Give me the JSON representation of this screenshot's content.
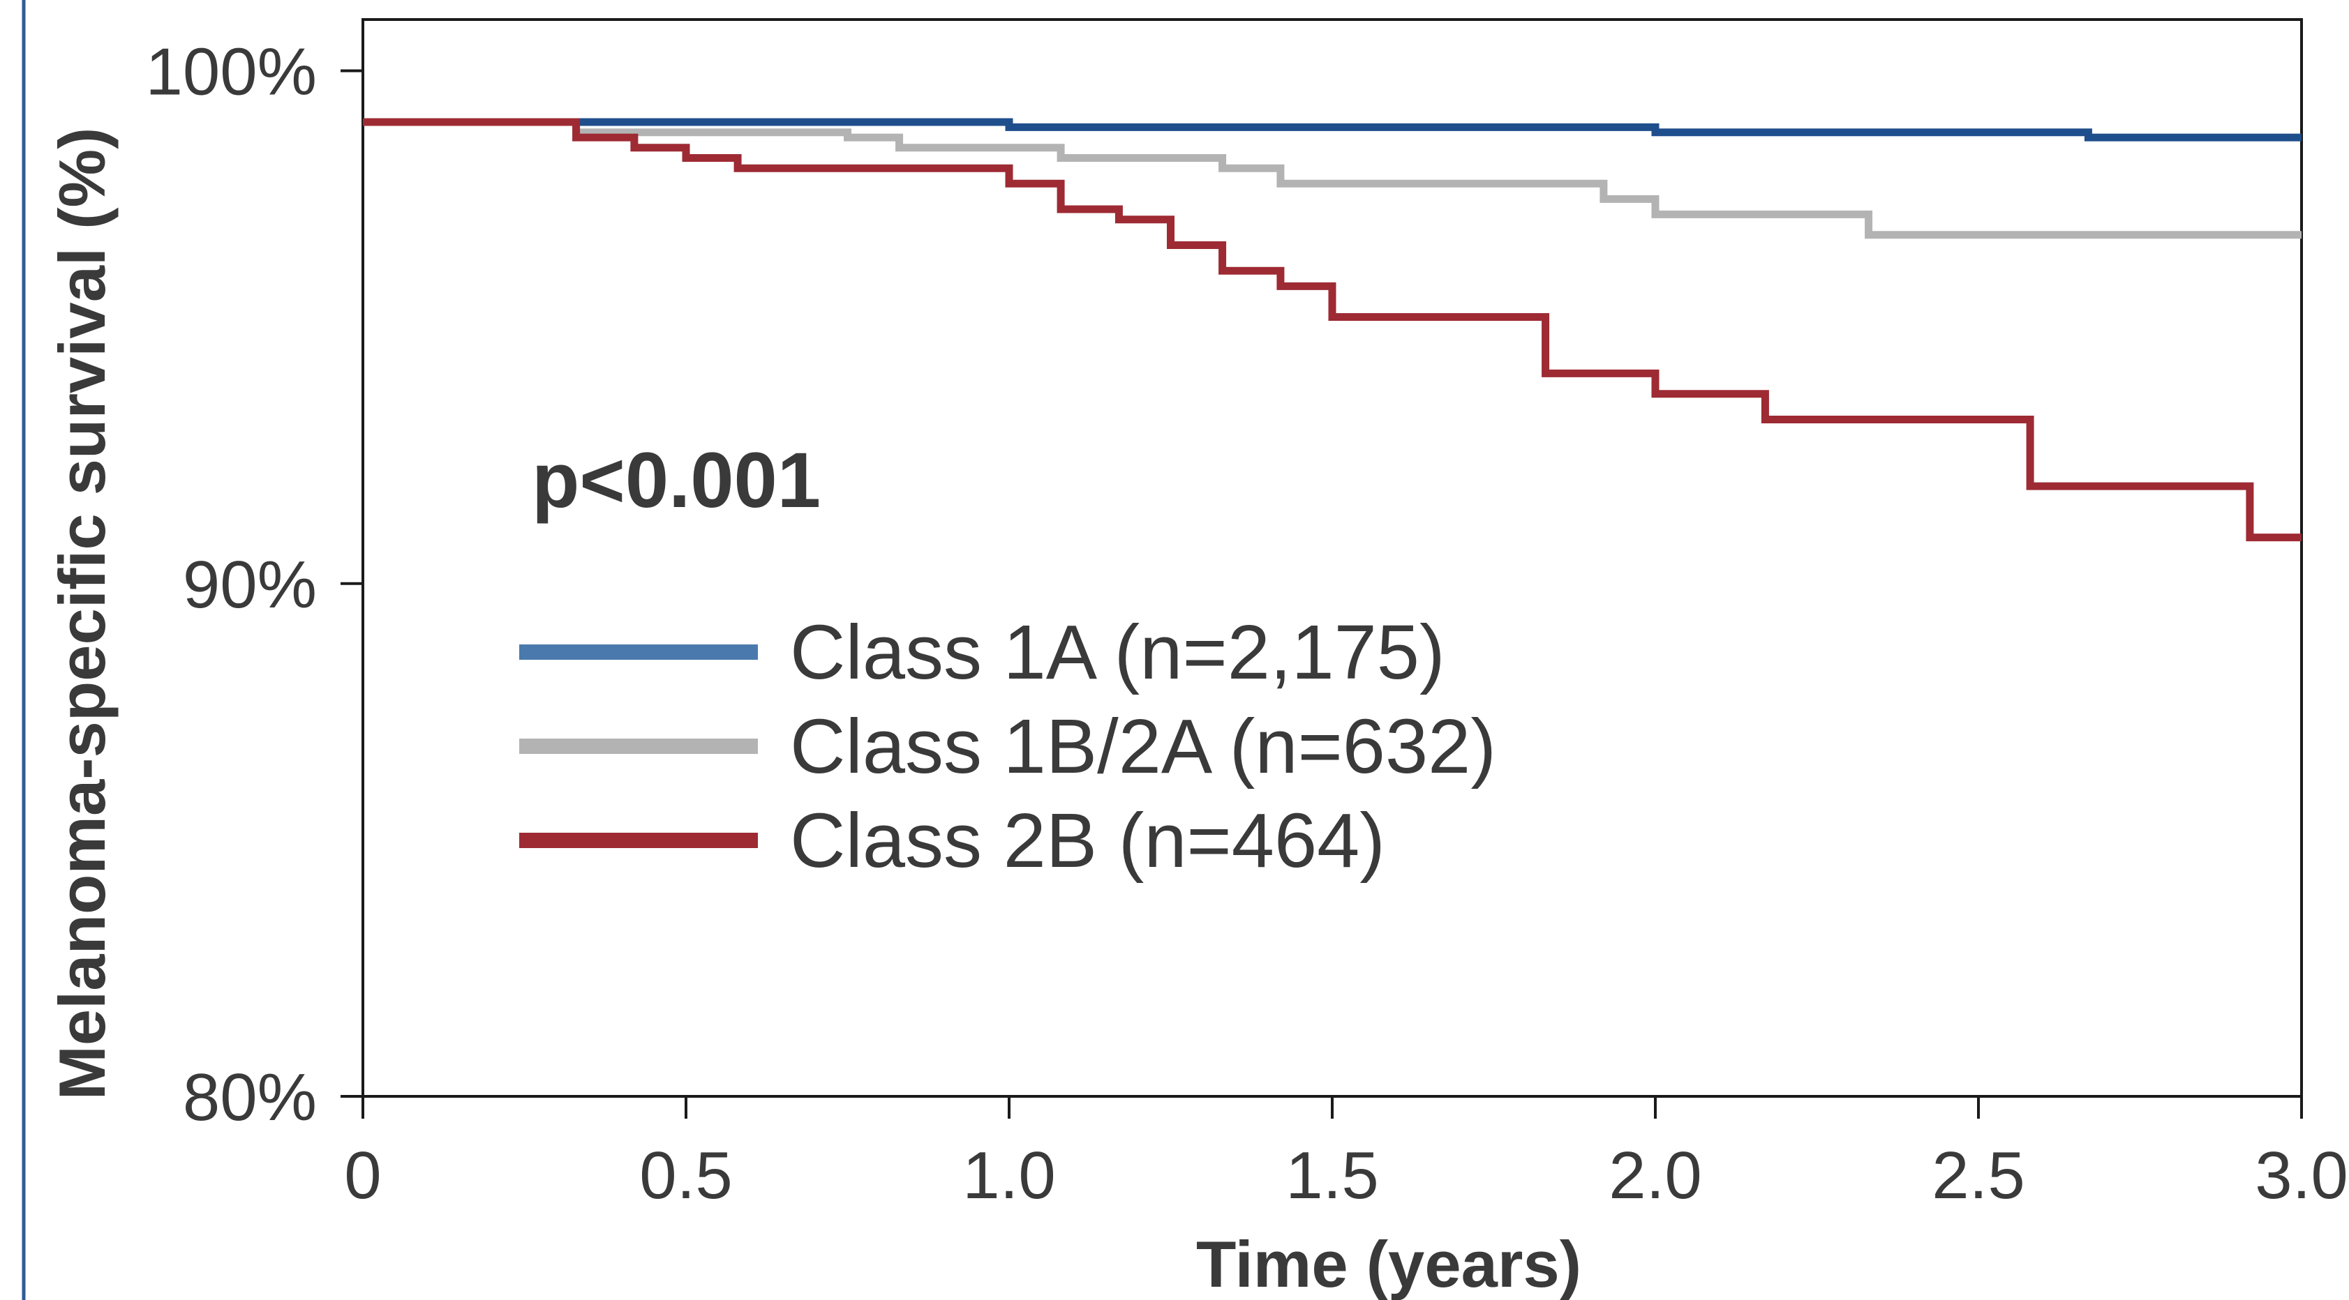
{
  "chart_data": {
    "type": "line",
    "subtype": "step (Kaplan-Meier)",
    "xlabel": "Time (years)",
    "ylabel": "Melanoma-specific survival (%)",
    "xlim": [
      0,
      3.0
    ],
    "ylim": [
      80,
      101
    ],
    "xticks": [
      0,
      0.5,
      1.0,
      1.5,
      2.0,
      2.5,
      3.0
    ],
    "xtick_labels": [
      "0",
      "0.5",
      "1.0",
      "1.5",
      "2.0",
      "2.5",
      "3.0"
    ],
    "yticks": [
      80,
      90,
      100
    ],
    "ytick_labels": [
      "80%",
      "90%",
      "100%"
    ],
    "grid": false,
    "legend_position": "center-left",
    "annotation": "p<0.001",
    "series": [
      {
        "name": "Class 1A (n=2,175)",
        "color": "#1f4e8c",
        "legend_color": "#4a7aad",
        "x": [
          0,
          1.0,
          2.0,
          2.67,
          3.0
        ],
        "y": [
          99.0,
          98.9,
          98.8,
          98.7,
          98.7
        ]
      },
      {
        "name": "Class 1B/2A (n=632)",
        "color": "#b3b3b3",
        "legend_color": "#b3b3b3",
        "x": [
          0,
          0.33,
          0.75,
          0.83,
          1.08,
          1.33,
          1.42,
          1.92,
          2.0,
          2.33,
          3.0
        ],
        "y": [
          99.0,
          98.8,
          98.7,
          98.5,
          98.3,
          98.1,
          97.8,
          97.5,
          97.2,
          96.8,
          96.8
        ]
      },
      {
        "name": "Class 2B (n=464)",
        "color": "#9e2a33",
        "legend_color": "#9e2a33",
        "x": [
          0,
          0.33,
          0.42,
          0.5,
          0.58,
          1.0,
          1.08,
          1.17,
          1.25,
          1.33,
          1.42,
          1.5,
          1.83,
          2.0,
          2.17,
          2.58,
          2.92,
          3.0
        ],
        "y": [
          99.0,
          98.7,
          98.5,
          98.3,
          98.1,
          97.8,
          97.3,
          97.1,
          96.6,
          96.1,
          95.8,
          95.2,
          94.1,
          93.7,
          93.2,
          91.9,
          90.9,
          90.9
        ]
      }
    ]
  }
}
